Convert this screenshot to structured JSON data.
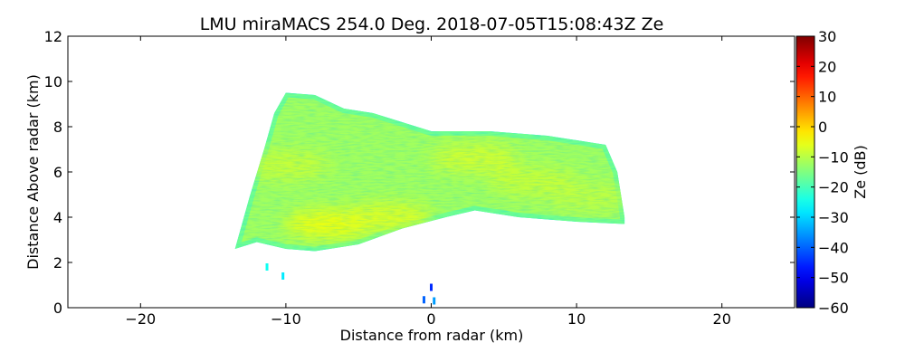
{
  "chart_data": {
    "type": "heatmap",
    "title": "LMU miraMACS 254.0 Deg. 2018-07-05T15:08:43Z  Ze",
    "xlabel": "Distance from radar (km)",
    "ylabel": "Distance Above radar  (km)",
    "xlim": [
      -25,
      25
    ],
    "ylim": [
      0,
      12
    ],
    "xticks": [
      -20,
      -10,
      0,
      10,
      20
    ],
    "xtick_labels": [
      "−20",
      "−10",
      "0",
      "10",
      "20"
    ],
    "yticks": [
      0,
      2,
      4,
      6,
      8,
      10,
      12
    ],
    "ytick_labels": [
      "0",
      "2",
      "4",
      "6",
      "8",
      "10",
      "12"
    ],
    "grid": false,
    "colorbar": {
      "label": "Ze (dB)",
      "colormap": "jet",
      "range": [
        -60,
        30
      ],
      "ticks": [
        30,
        20,
        10,
        0,
        -10,
        -20,
        -30,
        -40,
        -50,
        -60
      ],
      "tick_labels": [
        "30",
        "20",
        "10",
        "0",
        "−10",
        "−20",
        "−30",
        "−40",
        "−50",
        "−60"
      ]
    },
    "echo_region": {
      "top_boundary": [
        [
          -13.5,
          2.6
        ],
        [
          -12.5,
          4.9
        ],
        [
          -11.5,
          7.0
        ],
        [
          -10.8,
          8.6
        ],
        [
          -10,
          9.5
        ],
        [
          -8,
          9.4
        ],
        [
          -6,
          8.8
        ],
        [
          -4,
          8.6
        ],
        [
          -2,
          8.2
        ],
        [
          0,
          7.8
        ],
        [
          4,
          7.8
        ],
        [
          8,
          7.6
        ],
        [
          12,
          7.2
        ],
        [
          12.8,
          6.0
        ],
        [
          13.3,
          4.0
        ]
      ],
      "bottom_boundary": [
        [
          13.3,
          3.7
        ],
        [
          10,
          3.8
        ],
        [
          6,
          4.0
        ],
        [
          3,
          4.3
        ],
        [
          1,
          4.0
        ],
        [
          -2,
          3.5
        ],
        [
          -5,
          2.8
        ],
        [
          -8,
          2.5
        ],
        [
          -10,
          2.6
        ],
        [
          -12,
          2.9
        ],
        [
          -13.5,
          2.6
        ]
      ],
      "typical_ze_db": -12,
      "max_ze_db": -3,
      "edge_ze_db": -28
    },
    "hotspots": [
      {
        "x": -7,
        "y": 3.7,
        "ze": -4
      },
      {
        "x": -3,
        "y": 4.0,
        "ze": -6
      },
      {
        "x": 3,
        "y": 6.6,
        "ze": -7
      },
      {
        "x": 7,
        "y": 5.6,
        "ze": -8
      },
      {
        "x": -10,
        "y": 6.3,
        "ze": -8
      },
      {
        "x": 11,
        "y": 4.9,
        "ze": -9
      }
    ],
    "scattered_echoes": [
      {
        "x": 0,
        "y": 0.9,
        "ze": -45
      },
      {
        "x": -0.5,
        "y": 0.35,
        "ze": -40
      },
      {
        "x": 0.2,
        "y": 0.3,
        "ze": -35
      },
      {
        "x": -11.3,
        "y": 1.8,
        "ze": -25
      },
      {
        "x": -10.2,
        "y": 1.4,
        "ze": -28
      }
    ]
  }
}
